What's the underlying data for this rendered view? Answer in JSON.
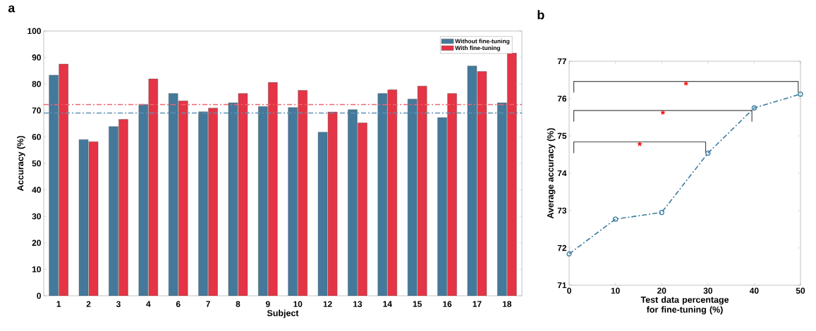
{
  "chart_data": [
    {
      "type": "bar",
      "title": "a",
      "xlabel": "Subject",
      "ylabel": "Accuracy (%)",
      "categories": [
        "1",
        "2",
        "3",
        "4",
        "6",
        "7",
        "8",
        "9",
        "10",
        "12",
        "13",
        "14",
        "15",
        "16",
        "17",
        "18"
      ],
      "series": [
        {
          "name": "Without fine-tuning",
          "color": "#44799b",
          "values": [
            83.3,
            59,
            63.9,
            72.3,
            76.4,
            69.5,
            72.9,
            71.5,
            71.1,
            61.8,
            70.3,
            76.4,
            74.3,
            67.3,
            86.8,
            72.9
          ]
        },
        {
          "name": "With fine-tuning",
          "color": "#e53445",
          "values": [
            87.5,
            58.2,
            66.6,
            81.9,
            73.6,
            70.9,
            76.4,
            80.6,
            77.6,
            69.4,
            65.3,
            77.8,
            79.2,
            76.4,
            84.7,
            91.7
          ]
        }
      ],
      "ylim": [
        0,
        100
      ],
      "yticks": [
        0,
        10,
        20,
        30,
        40,
        50,
        60,
        70,
        80,
        90,
        100
      ],
      "ref_lines": [
        {
          "axis": "y",
          "value": 72.2,
          "color": "#ef6672",
          "line_style": "dashed"
        },
        {
          "axis": "y",
          "value": 69,
          "color": "#5e91b3",
          "line_style": "dashed"
        }
      ],
      "legend": "top right"
    },
    {
      "type": "line",
      "title": "b",
      "xlabel": "Test data percentage for fine-tuning (%)",
      "ylabel": "Average accuracy (%)",
      "x": [
        0,
        10,
        20,
        30,
        40,
        50
      ],
      "series": [
        {
          "color": "#3b7ca0",
          "values": [
            71.84,
            72.77,
            72.95,
            74.54,
            75.75,
            76.12
          ]
        }
      ],
      "xlim": [
        0,
        50
      ],
      "xticks": [
        0,
        10,
        20,
        30,
        40,
        50
      ],
      "ylim": [
        71,
        77
      ],
      "yticks": [
        71,
        72,
        73,
        74,
        75,
        76,
        77
      ],
      "marker": "circle",
      "line_style": "dashed",
      "annotations": [
        "*",
        "*",
        "*"
      ]
    }
  ]
}
